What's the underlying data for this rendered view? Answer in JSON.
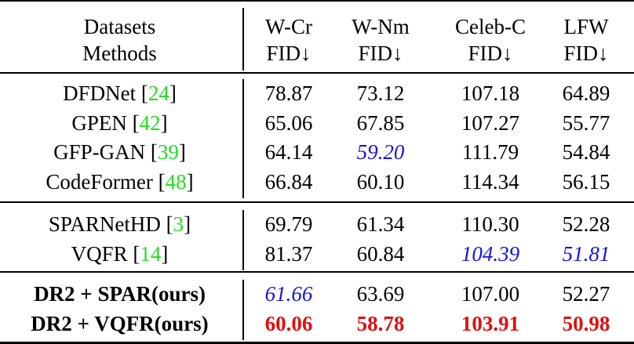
{
  "table": {
    "header": {
      "row1": [
        "Datasets",
        "W-Cr",
        "W-Nm",
        "Celeb-C",
        "LFW"
      ],
      "row2": [
        "Methods",
        "FID↓",
        "FID↓",
        "FID↓",
        "FID↓"
      ]
    },
    "colors": {
      "citation": "#22dd22",
      "best": "#e01010",
      "second_best": "#1414e0"
    },
    "groups": [
      [
        {
          "method": "DFDNet",
          "cite": "24",
          "bold": false,
          "values": [
            "78.87",
            "73.12",
            "107.18",
            "64.89"
          ],
          "styles": [
            "",
            "",
            "",
            ""
          ]
        },
        {
          "method": "GPEN",
          "cite": "42",
          "bold": false,
          "values": [
            "65.06",
            "67.85",
            "107.27",
            "55.77"
          ],
          "styles": [
            "",
            "",
            "",
            ""
          ]
        },
        {
          "method": "GFP-GAN",
          "cite": "39",
          "bold": false,
          "values": [
            "64.14",
            "59.20",
            "111.79",
            "54.84"
          ],
          "styles": [
            "",
            "second",
            "",
            ""
          ]
        },
        {
          "method": "CodeFormer",
          "cite": "48",
          "bold": false,
          "values": [
            "66.84",
            "60.10",
            "114.34",
            "56.15"
          ],
          "styles": [
            "",
            "",
            "",
            ""
          ]
        }
      ],
      [
        {
          "method": "SPARNetHD",
          "cite": "3",
          "bold": false,
          "values": [
            "69.79",
            "61.34",
            "110.30",
            "52.28"
          ],
          "styles": [
            "",
            "",
            "",
            ""
          ]
        },
        {
          "method": "VQFR",
          "cite": "14",
          "bold": false,
          "values": [
            "81.37",
            "60.84",
            "104.39",
            "51.81"
          ],
          "styles": [
            "",
            "",
            "second",
            "second"
          ]
        }
      ],
      [
        {
          "method": "DR2 + SPAR(ours)",
          "cite": "",
          "bold": true,
          "values": [
            "61.66",
            "63.69",
            "107.00",
            "52.27"
          ],
          "styles": [
            "second",
            "",
            "",
            ""
          ]
        },
        {
          "method": "DR2 + VQFR(ours)",
          "cite": "",
          "bold": true,
          "values": [
            "60.06",
            "58.78",
            "103.91",
            "50.98"
          ],
          "styles": [
            "best",
            "best",
            "best",
            "best"
          ]
        }
      ]
    ]
  }
}
